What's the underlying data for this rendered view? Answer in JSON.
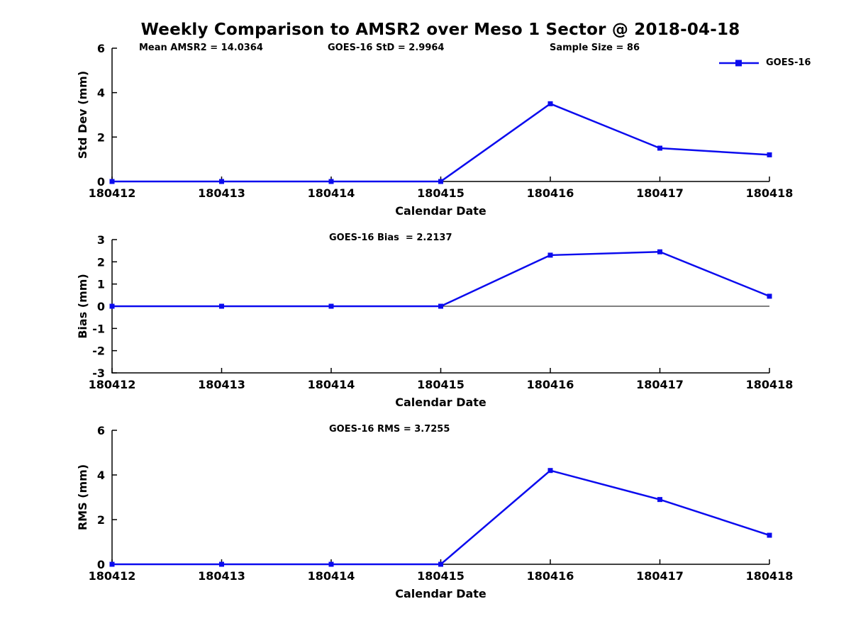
{
  "title": "Weekly Comparison to AMSR2 over Meso 1 Sector @ 2018-04-18",
  "legend": {
    "label": "GOES-16"
  },
  "colors": {
    "series": "#0b0bee",
    "axis": "#000000",
    "text": "#000000",
    "background": "#ffffff"
  },
  "chart_data": [
    {
      "type": "line",
      "panel": "std-dev",
      "annotations": [
        "Mean AMSR2 = 14.0364",
        "GOES-16 StD = 2.9964",
        "Sample Size = 86"
      ],
      "categories": [
        "180412",
        "180413",
        "180414",
        "180415",
        "180416",
        "180417",
        "180418"
      ],
      "series": [
        {
          "name": "GOES-16",
          "values": [
            0,
            0,
            0,
            0,
            3.5,
            1.5,
            1.2
          ]
        }
      ],
      "xlabel": "Calendar Date",
      "ylabel": "Std Dev (mm)",
      "ylim": [
        0,
        6
      ],
      "yticks": [
        0,
        2,
        4,
        6
      ],
      "grid": false,
      "legend_position": "top-right-inside",
      "zero_line": false
    },
    {
      "type": "line",
      "panel": "bias",
      "annotations": [
        "GOES-16 Bias  = 2.2137"
      ],
      "categories": [
        "180412",
        "180413",
        "180414",
        "180415",
        "180416",
        "180417",
        "180418"
      ],
      "series": [
        {
          "name": "GOES-16",
          "values": [
            0,
            0,
            0,
            0,
            2.3,
            2.45,
            0.45
          ]
        }
      ],
      "xlabel": "Calendar Date",
      "ylabel": "Bias (mm)",
      "ylim": [
        -3,
        3
      ],
      "yticks": [
        3,
        2,
        1,
        0,
        -1,
        -2,
        -3
      ],
      "grid": false,
      "legend_position": "none",
      "zero_line": true
    },
    {
      "type": "line",
      "panel": "rms",
      "annotations": [
        "GOES-16 RMS = 3.7255"
      ],
      "categories": [
        "180412",
        "180413",
        "180414",
        "180415",
        "180416",
        "180417",
        "180418"
      ],
      "series": [
        {
          "name": "GOES-16",
          "values": [
            0,
            0,
            0,
            0,
            4.2,
            2.9,
            1.3
          ]
        }
      ],
      "xlabel": "Calendar Date",
      "ylabel": "RMS (mm)",
      "ylim": [
        0,
        6
      ],
      "yticks": [
        0,
        2,
        4,
        6
      ],
      "grid": false,
      "legend_position": "none",
      "zero_line": false
    }
  ]
}
